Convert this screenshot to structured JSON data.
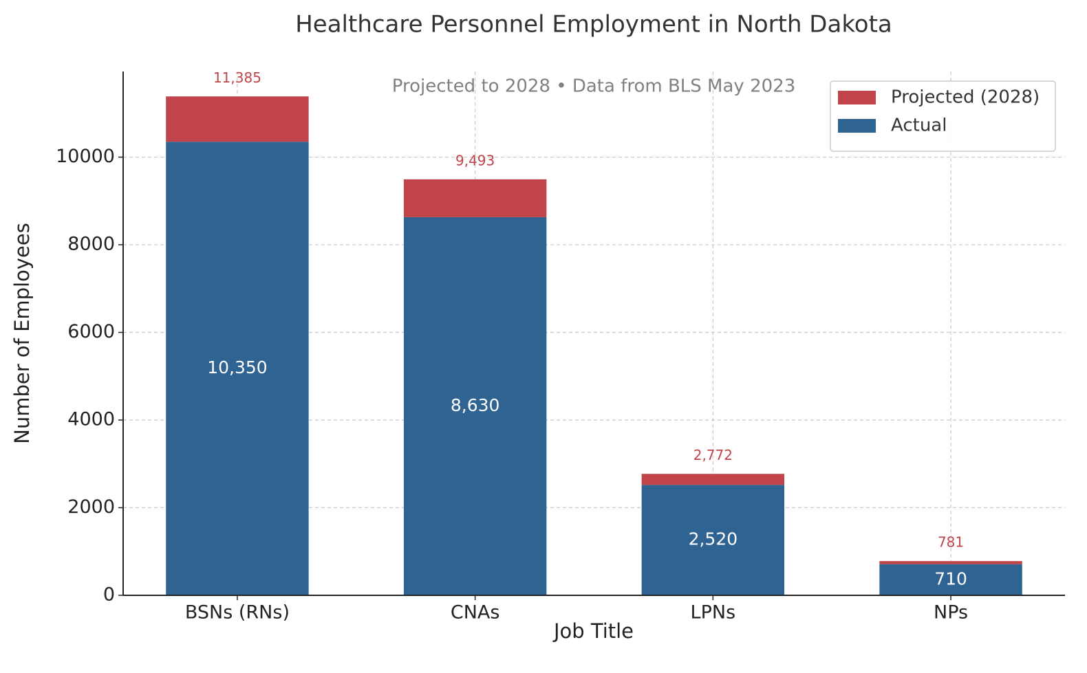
{
  "chart_data": {
    "type": "stacked_bar",
    "title": "Healthcare Personnel Employment in North Dakota",
    "subtitle": "Projected to 2028 • Data from BLS May 2023",
    "x_label": "Job Title",
    "y_label": "Number of Employees",
    "categories": [
      "BSNs (RNs)",
      "CNAs",
      "LPNs",
      "NPs"
    ],
    "series": [
      {
        "name": "Actual",
        "color": "#2f6392",
        "values": [
          10350,
          8630,
          2520,
          710
        ],
        "value_labels": [
          "10,350",
          "8,630",
          "2,520",
          "710"
        ]
      },
      {
        "name": "Projected (2028)",
        "color": "#c0444a",
        "values": [
          1035,
          863,
          252,
          71
        ]
      }
    ],
    "totals": [
      11385,
      9493,
      2772,
      781
    ],
    "total_labels": [
      "11,385",
      "9,493",
      "2,772",
      "781"
    ],
    "ylim": [
      0,
      11954
    ],
    "yticks": [
      0,
      2000,
      4000,
      6000,
      8000,
      10000
    ],
    "grid": true,
    "legend": "upper right"
  }
}
